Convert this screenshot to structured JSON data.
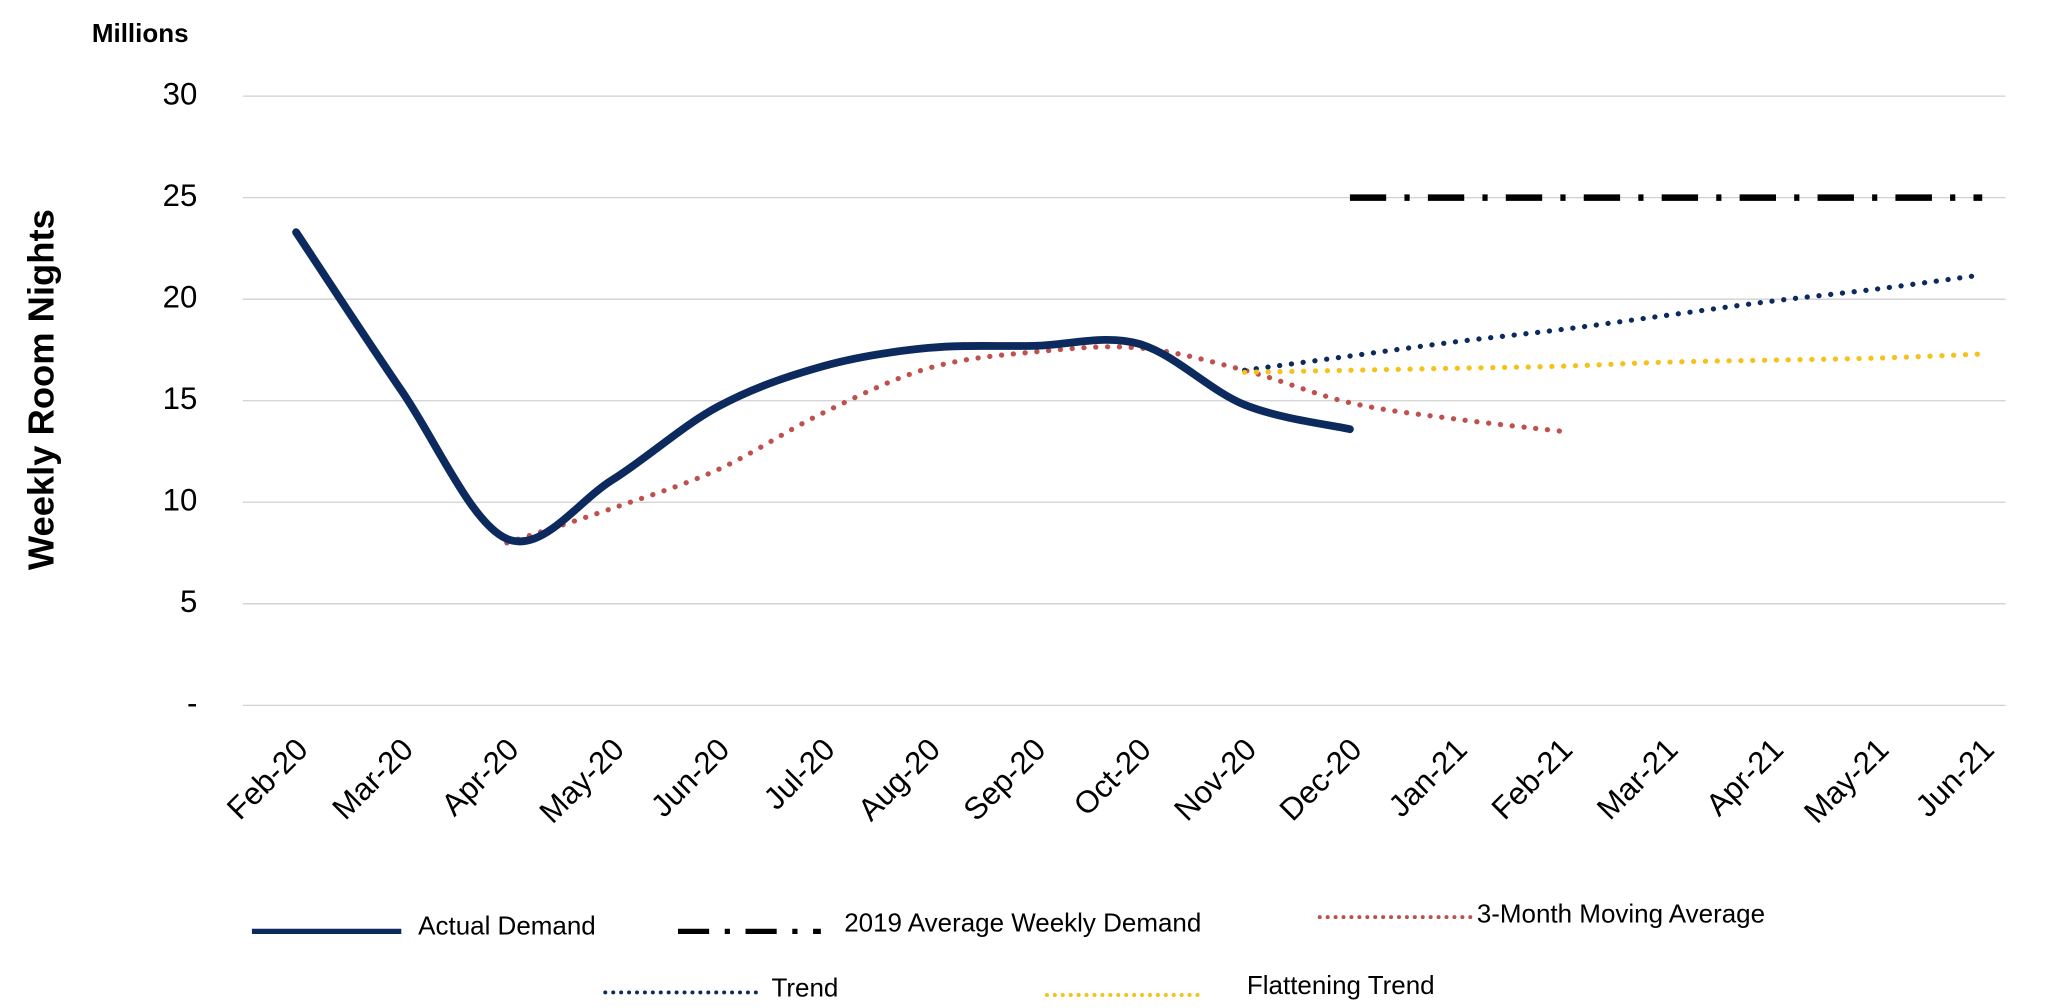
{
  "chart_data": {
    "type": "line",
    "y_axis_label": "Weekly Room Nights",
    "y_unit_label": "Millions",
    "categories": [
      "Feb-20",
      "Mar-20",
      "Apr-20",
      "May-20",
      "Jun-20",
      "Jul-20",
      "Aug-20",
      "Sep-20",
      "Oct-20",
      "Nov-20",
      "Dec-20",
      "Jan-21",
      "Feb-21",
      "Mar-21",
      "Apr-21",
      "May-21",
      "Jun-21"
    ],
    "ylim": [
      0,
      30
    ],
    "yticks": [
      {
        "value": 0,
        "label": "-"
      },
      5,
      10,
      15,
      20,
      25,
      30
    ],
    "grid": true,
    "series": [
      {
        "name": "Actual Demand",
        "color": "#0d2a5e",
        "dash": "solid",
        "values": [
          23.3,
          15.5,
          8.2,
          11.1,
          14.7,
          16.7,
          17.6,
          17.7,
          17.8,
          14.8,
          13.6,
          null,
          null,
          null,
          null,
          null,
          null
        ]
      },
      {
        "name": "2019 Average Weekly Demand",
        "color": "#000000",
        "dash": "dashdot",
        "values": [
          null,
          null,
          null,
          null,
          null,
          null,
          null,
          null,
          null,
          null,
          25,
          25,
          25,
          25,
          25,
          25,
          25
        ]
      },
      {
        "name": "3-Month Moving Average",
        "color": "#c0504d",
        "dash": "dotted",
        "values": [
          null,
          null,
          8.0,
          9.7,
          11.6,
          14.4,
          16.6,
          17.4,
          17.6,
          16.5,
          14.9,
          14.1,
          13.5,
          null,
          null,
          null,
          null
        ]
      },
      {
        "name": "Trend",
        "color": "#0d2a5e",
        "dash": "dotted",
        "values": [
          null,
          null,
          null,
          null,
          null,
          null,
          null,
          null,
          null,
          16.5,
          17.2,
          17.9,
          18.5,
          19.2,
          19.9,
          20.5,
          21.2
        ]
      },
      {
        "name": "Flattening Trend",
        "color": "#f5c21b",
        "dash": "dotted",
        "values": [
          null,
          null,
          null,
          null,
          null,
          null,
          null,
          null,
          null,
          16.4,
          16.5,
          16.6,
          16.7,
          16.9,
          17.0,
          17.1,
          17.3
        ]
      }
    ]
  }
}
